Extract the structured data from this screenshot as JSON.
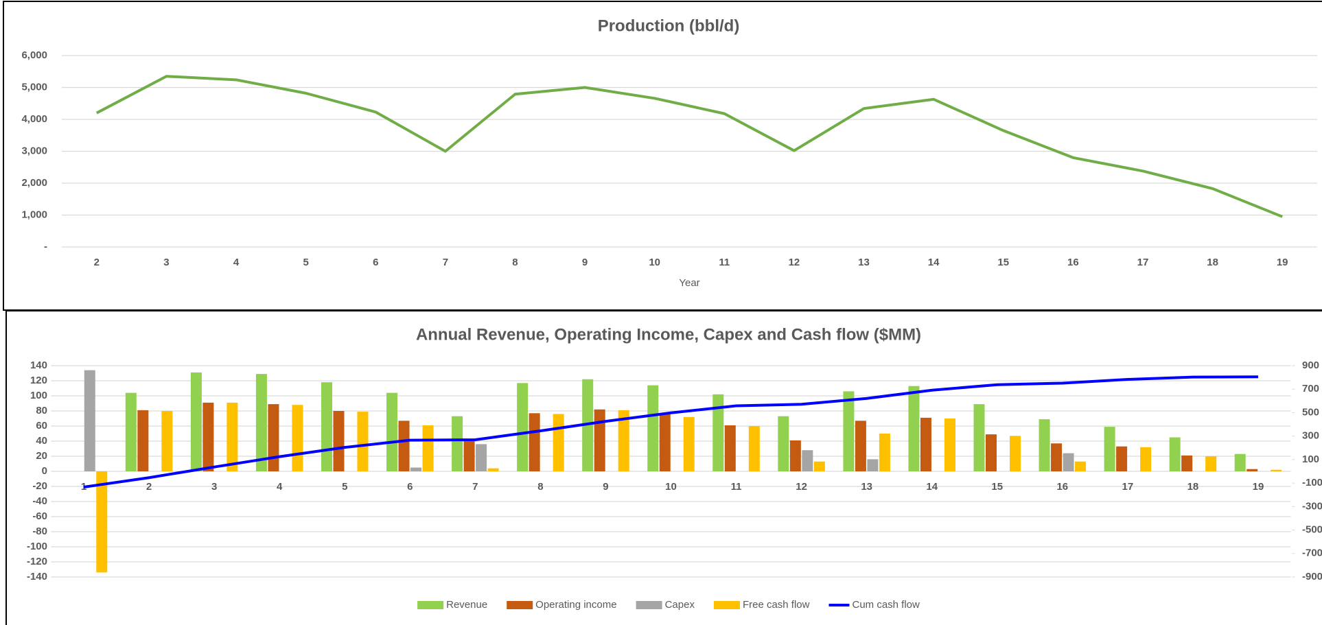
{
  "chart_data": [
    {
      "type": "line",
      "title": "Production (bbl/d)",
      "x_label": "Year",
      "categories": [
        "2",
        "3",
        "4",
        "5",
        "6",
        "7",
        "8",
        "9",
        "10",
        "11",
        "12",
        "13",
        "14",
        "15",
        "16",
        "17",
        "18",
        "19"
      ],
      "values": [
        4200,
        5350,
        5240,
        4820,
        4230,
        3000,
        4790,
        5000,
        4660,
        4180,
        3020,
        4340,
        4630,
        3650,
        2800,
        2380,
        1830,
        950
      ],
      "color": "#70ad47",
      "ylim": [
        0,
        6000
      ],
      "yticks": [
        {
          "value": 0,
          "label": "-"
        },
        {
          "value": 1000,
          "label": "1,000"
        },
        {
          "value": 2000,
          "label": "2,000"
        },
        {
          "value": 3000,
          "label": "3,000"
        },
        {
          "value": 4000,
          "label": "4,000"
        },
        {
          "value": 5000,
          "label": "5,000"
        },
        {
          "value": 6000,
          "label": "6,000"
        }
      ],
      "grid": true
    },
    {
      "type": "bar",
      "title": "Annual Revenue, Operating Income, Capex and Cash flow ($MM)",
      "categories": [
        "1",
        "2",
        "3",
        "4",
        "5",
        "6",
        "7",
        "8",
        "9",
        "10",
        "11",
        "12",
        "13",
        "14",
        "15",
        "16",
        "17",
        "18",
        "19"
      ],
      "series": [
        {
          "name": "Revenue",
          "color": "#92d050",
          "values": [
            0,
            104,
            131,
            129,
            118,
            104,
            73,
            117,
            122,
            114,
            102,
            73,
            106,
            113,
            89,
            69,
            59,
            45,
            23
          ]
        },
        {
          "name": "Operating income",
          "color": "#c55a11",
          "values": [
            0,
            81,
            91,
            89,
            80,
            67,
            40,
            77,
            82,
            76,
            61,
            41,
            67,
            71,
            49,
            37,
            33,
            21,
            3
          ]
        },
        {
          "name": "Capex",
          "color": "#a5a5a5",
          "values": [
            134,
            0,
            0,
            0,
            0,
            5,
            36,
            0,
            0,
            0,
            0,
            28,
            16,
            0,
            0,
            24,
            0,
            0,
            0
          ]
        },
        {
          "name": "Free cash flow",
          "color": "#ffc000",
          "values": [
            -134,
            80,
            91,
            88,
            79,
            61,
            4,
            76,
            81,
            72,
            60,
            13,
            50,
            70,
            47,
            13,
            32,
            20,
            2
          ]
        },
        {
          "name": "Cum cash flow",
          "color": "#0000ff",
          "type": "line",
          "axis": "y2",
          "values": [
            -134,
            -54,
            37,
            125,
            204,
            265,
            269,
            345,
            426,
            498,
            558,
            571,
            621,
            691,
            738,
            751,
            783,
            803,
            805
          ]
        }
      ],
      "ylim": [
        -140,
        140
      ],
      "yticks": [
        -140,
        -120,
        -100,
        -80,
        -60,
        -40,
        -20,
        0,
        20,
        40,
        60,
        80,
        100,
        120,
        140
      ],
      "y2lim": [
        -900,
        900
      ],
      "y2ticks": [
        -900,
        -700,
        -500,
        -300,
        -100,
        100,
        300,
        500,
        700,
        900
      ],
      "grid": true,
      "legend": "bottom"
    }
  ]
}
